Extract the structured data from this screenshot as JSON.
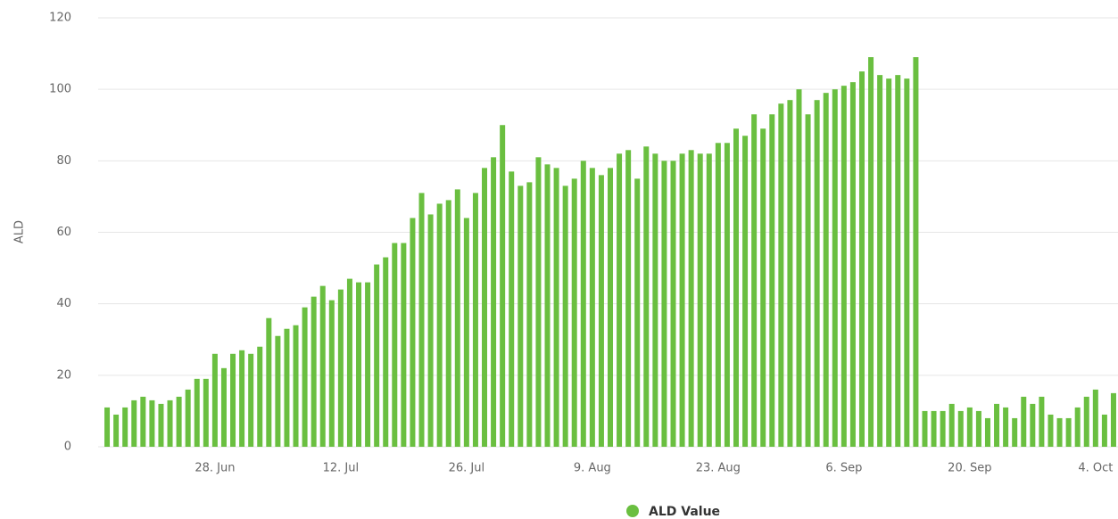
{
  "chart_data": {
    "type": "bar",
    "ylabel": "ALD",
    "categories": [
      null,
      null,
      null,
      null,
      null,
      null,
      null,
      null,
      null,
      null,
      null,
      null,
      "28. Jun",
      null,
      null,
      null,
      null,
      null,
      null,
      null,
      null,
      null,
      null,
      null,
      null,
      null,
      "12. Jul",
      null,
      null,
      null,
      null,
      null,
      null,
      null,
      null,
      null,
      null,
      null,
      null,
      null,
      "26. Jul",
      null,
      null,
      null,
      null,
      null,
      null,
      null,
      null,
      null,
      null,
      null,
      null,
      null,
      "9. Aug",
      null,
      null,
      null,
      null,
      null,
      null,
      null,
      null,
      null,
      null,
      null,
      null,
      null,
      "23. Aug",
      null,
      null,
      null,
      null,
      null,
      null,
      null,
      null,
      null,
      null,
      null,
      null,
      null,
      "6. Sep",
      null,
      null,
      null,
      null,
      null,
      null,
      null,
      null,
      null,
      null,
      null,
      null,
      null,
      "20. Sep",
      null,
      null,
      null,
      null,
      null,
      null,
      null,
      null,
      null,
      null,
      null,
      null,
      null,
      "4. Oct",
      null,
      null
    ],
    "series": [
      {
        "name": "ALD Value",
        "color": "#6abf40",
        "values": [
          11,
          9,
          11,
          13,
          14,
          13,
          12,
          13,
          14,
          16,
          19,
          19,
          26,
          22,
          26,
          27,
          26,
          28,
          36,
          31,
          33,
          34,
          39,
          42,
          45,
          41,
          44,
          47,
          46,
          46,
          51,
          53,
          57,
          57,
          64,
          71,
          65,
          68,
          69,
          72,
          64,
          71,
          78,
          81,
          90,
          77,
          73,
          74,
          81,
          79,
          78,
          73,
          75,
          80,
          78,
          76,
          78,
          82,
          83,
          75,
          84,
          82,
          80,
          80,
          82,
          83,
          82,
          82,
          85,
          85,
          89,
          87,
          93,
          89,
          93,
          96,
          97,
          100,
          93,
          97,
          99,
          100,
          101,
          102,
          105,
          109,
          104,
          103,
          104,
          103,
          109,
          10,
          10,
          10,
          12,
          10,
          11,
          10,
          8,
          12,
          11,
          8,
          14,
          12,
          14,
          9,
          8,
          8,
          11,
          14,
          16,
          9,
          15
        ]
      }
    ],
    "ylim": [
      0,
      120
    ],
    "yticks": [
      0,
      20,
      40,
      60,
      80,
      100,
      120
    ],
    "grid": true
  }
}
